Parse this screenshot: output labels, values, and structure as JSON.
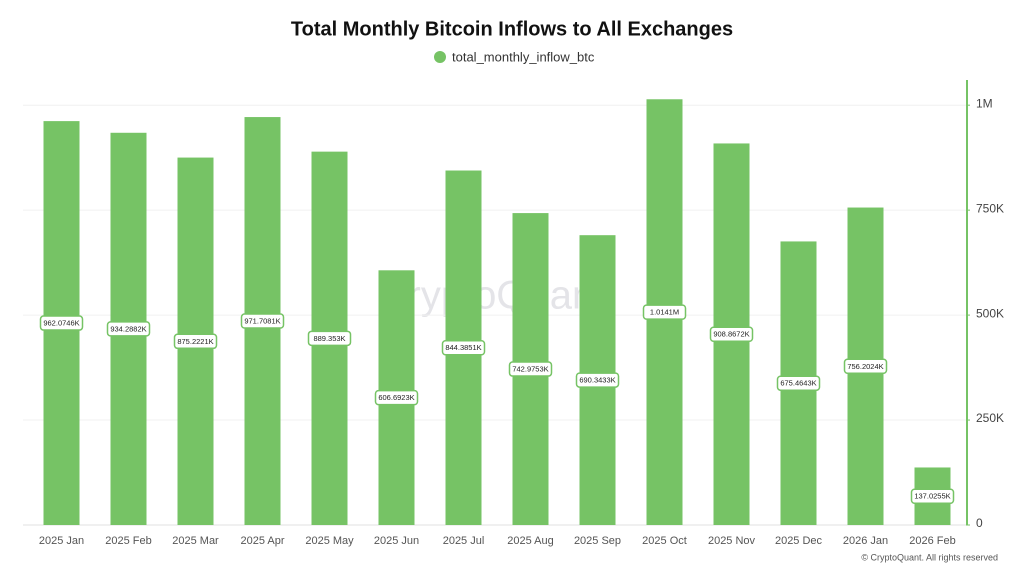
{
  "chart_data": {
    "type": "bar",
    "title": "Total Monthly Bitcoin Inflows to All Exchanges",
    "watermark": "CryptoQuant",
    "footer": "© CryptoQuant. All rights reserved",
    "categories": [
      "2025 Jan",
      "2025 Feb",
      "2025 Mar",
      "2025 Apr",
      "2025 May",
      "2025 Jun",
      "2025 Jul",
      "2025 Aug",
      "2025 Sep",
      "2025 Oct",
      "2025 Nov",
      "2025 Dec",
      "2026 Jan",
      "2026 Feb"
    ],
    "series": [
      {
        "name": "total_monthly_inflow_btc",
        "color": "#76c365",
        "values": [
          962074.6,
          934288.2,
          875222.1,
          971708.1,
          889353,
          606692.3,
          844385.1,
          742975.3,
          690343.3,
          1014100,
          908867.2,
          675464.3,
          756202.4,
          137025.5
        ],
        "value_labels": [
          "962.0746K",
          "934.2882K",
          "875.2221K",
          "971.7081K",
          "889.353K",
          "606.6923K",
          "844.3851K",
          "742.9753K",
          "690.3433K",
          "1.0141M",
          "908.8672K",
          "675.4643K",
          "756.2024K",
          "137.0255K"
        ]
      }
    ],
    "ylim": [
      0,
      1060000
    ],
    "yticks": [
      0,
      {
        "value": 250000,
        "label": "250K"
      },
      {
        "value": 500000,
        "label": "500K"
      },
      {
        "value": 750000,
        "label": "750K"
      },
      {
        "value": 1000000,
        "label": "1M"
      }
    ],
    "grid": true,
    "legend": "top"
  }
}
